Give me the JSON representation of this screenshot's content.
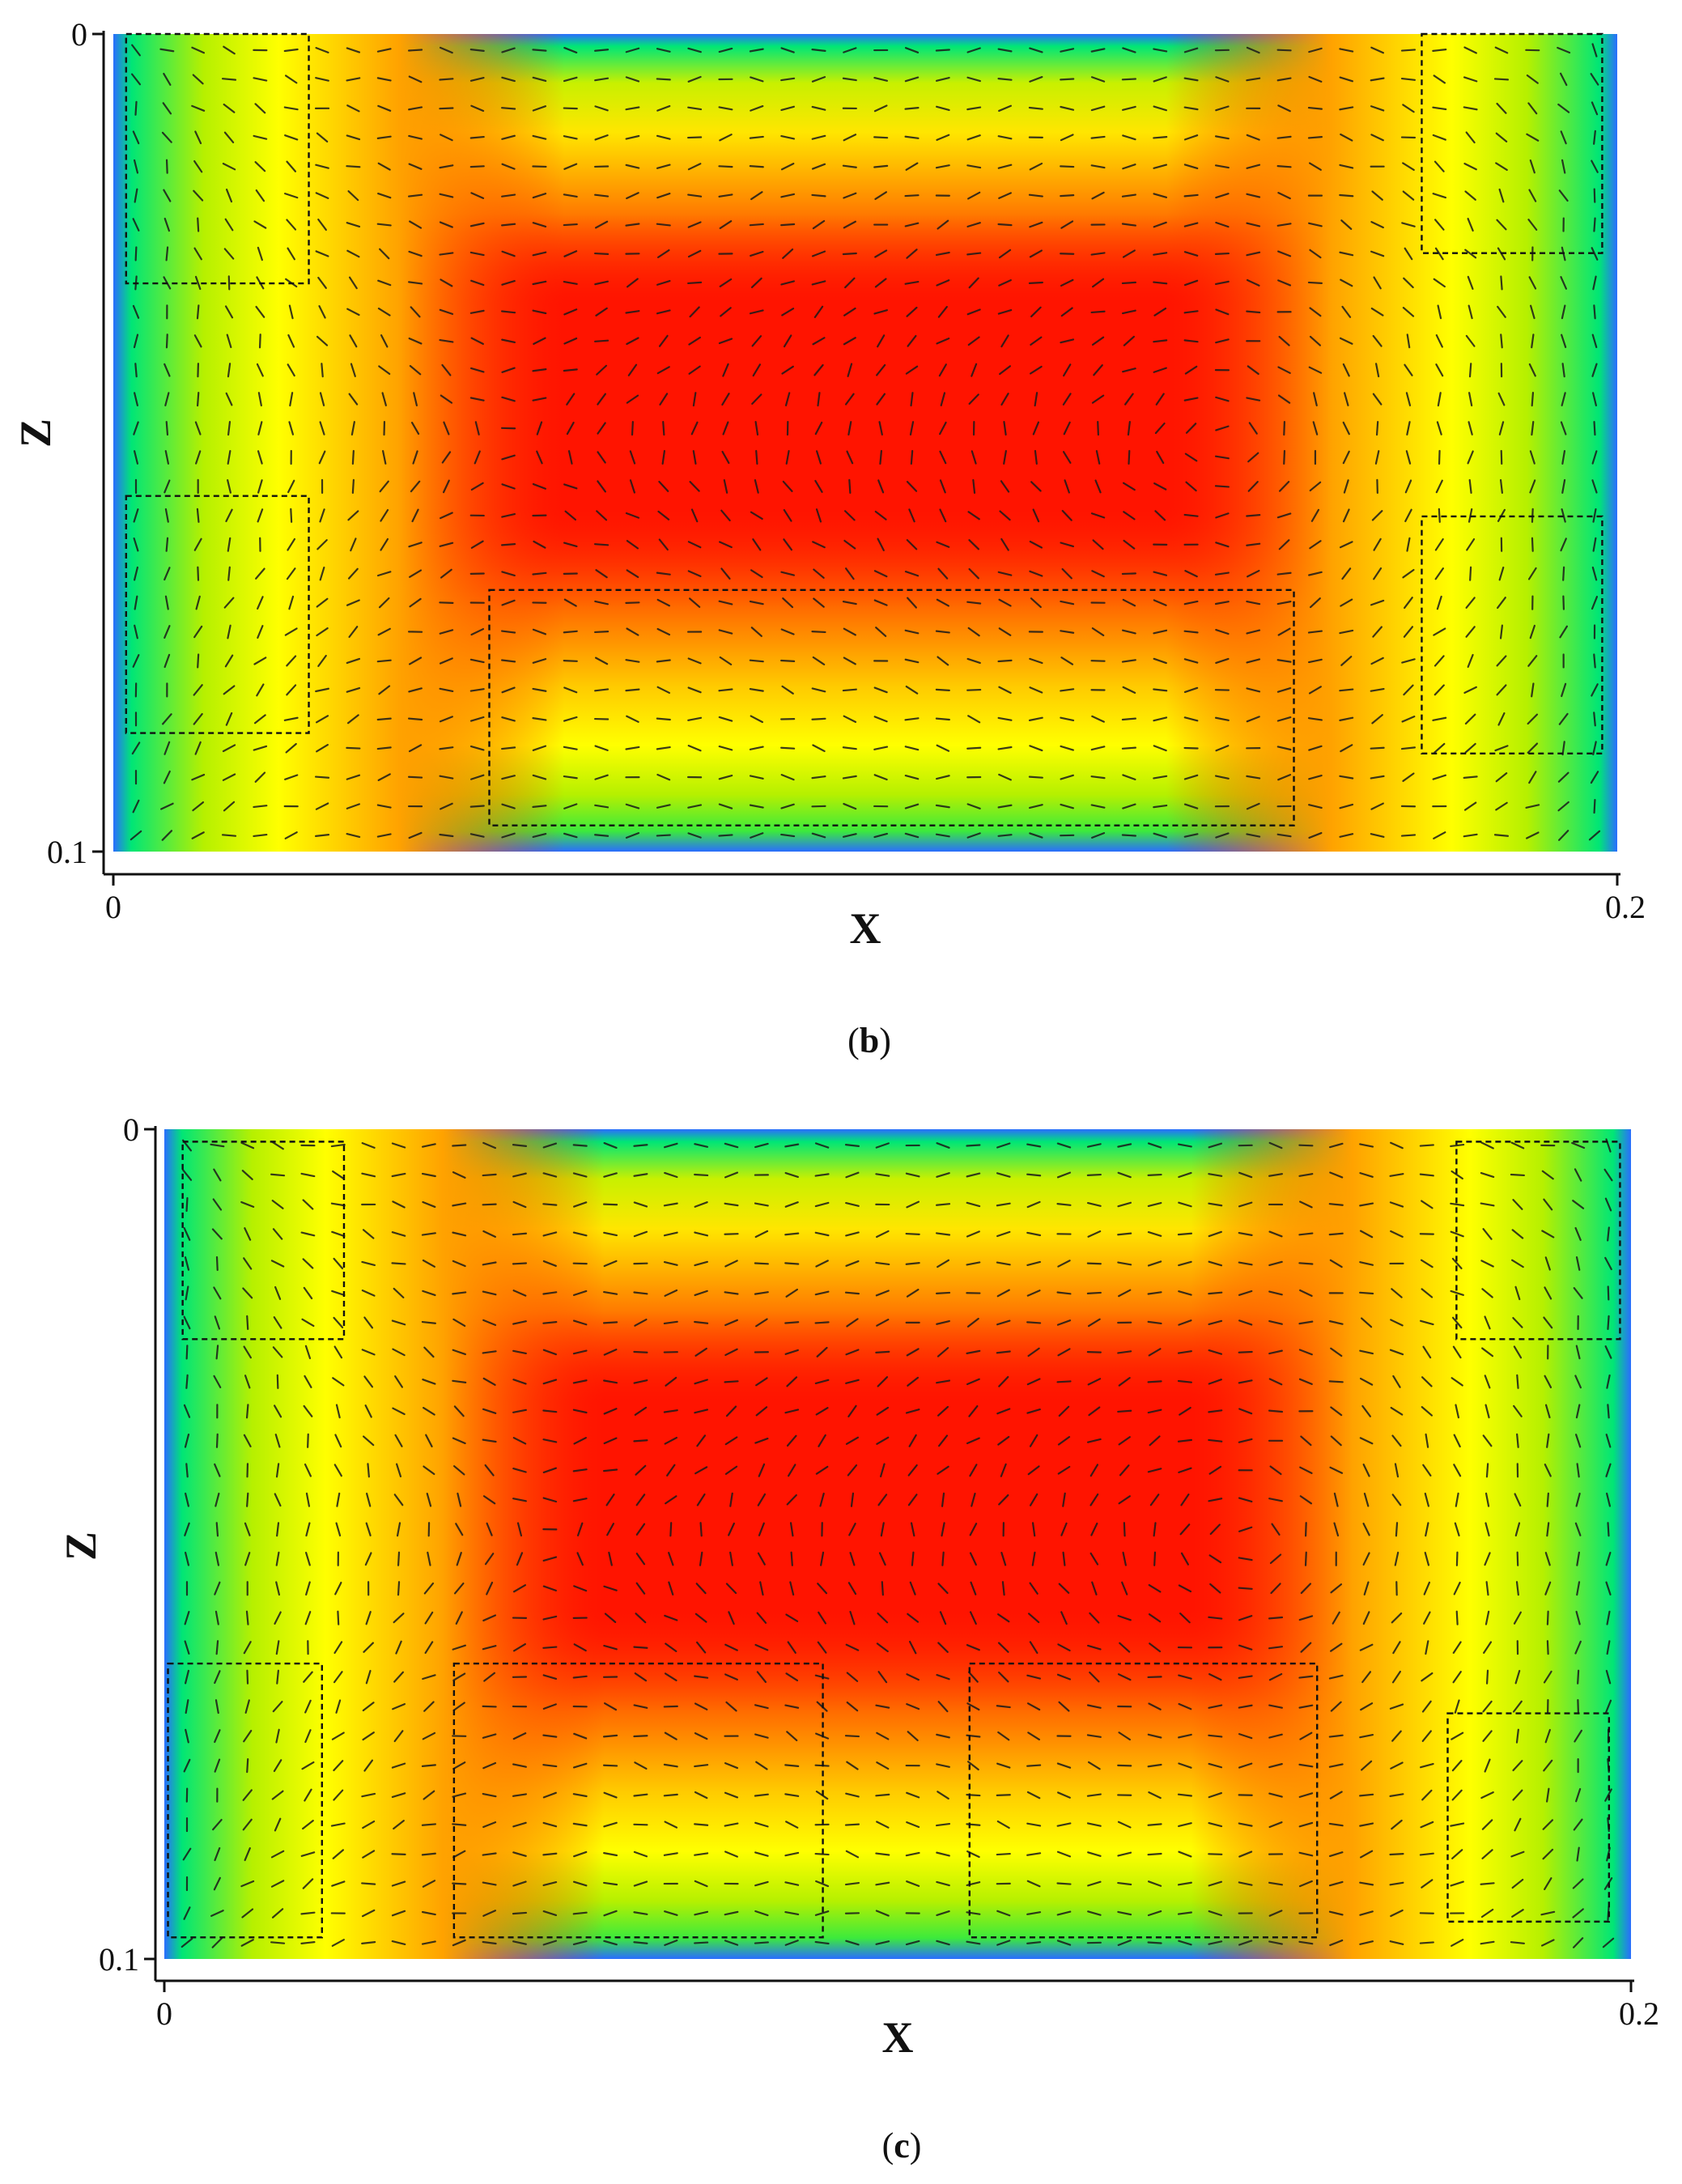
{
  "chart_data": [
    {
      "type": "heatmap",
      "panel": "b",
      "caption": {
        "open": "(",
        "letter": "b",
        "close": ")"
      },
      "xlabel": "X",
      "ylabel": "Z",
      "x_ticks": [
        "0",
        "0.2"
      ],
      "y_ticks": [
        "0",
        "0.1"
      ],
      "xlim": [
        0,
        0.2
      ],
      "ylim": [
        0,
        0.1
      ],
      "y_inverted": true,
      "field": "contour with velocity vector glyphs; peak (red) in interior, low (blue/green) at walls",
      "colormap": [
        "#1f5cff",
        "#00e676",
        "#b6f000",
        "#ffff00",
        "#ffaa00",
        "#ff3a00",
        "#ff0000"
      ],
      "highlight_regions": [
        {
          "x": [
            0.0017,
            0.026
          ],
          "z": [
            0.0,
            0.0305
          ]
        },
        {
          "x": [
            0.174,
            0.198
          ],
          "z": [
            0.0,
            0.0268
          ]
        },
        {
          "x": [
            0.0017,
            0.026
          ],
          "z": [
            0.0565,
            0.0855
          ]
        },
        {
          "x": [
            0.05,
            0.157
          ],
          "z": [
            0.068,
            0.0968
          ]
        },
        {
          "x": [
            0.174,
            0.198
          ],
          "z": [
            0.059,
            0.088
          ]
        }
      ]
    },
    {
      "type": "heatmap",
      "panel": "c",
      "caption": {
        "open": "(",
        "letter": "c",
        "close": ")"
      },
      "xlabel": "X",
      "ylabel": "Z",
      "x_ticks": [
        "0",
        "0.2"
      ],
      "y_ticks": [
        "0",
        "0.1"
      ],
      "xlim": [
        0,
        0.2
      ],
      "ylim": [
        0,
        0.1
      ],
      "y_inverted": true,
      "field": "contour with velocity vector glyphs; peak (red) in interior, low (blue/green) at walls",
      "colormap": [
        "#1f5cff",
        "#00e676",
        "#b6f000",
        "#ffff00",
        "#ffaa00",
        "#ff3a00",
        "#ff0000"
      ],
      "highlight_regions": [
        {
          "x": [
            0.0025,
            0.0245
          ],
          "z": [
            0.0015,
            0.0253
          ]
        },
        {
          "x": [
            0.1762,
            0.1985
          ],
          "z": [
            0.0015,
            0.0253
          ]
        },
        {
          "x": [
            0.0005,
            0.0215
          ],
          "z": [
            0.0644,
            0.0974
          ]
        },
        {
          "x": [
            0.0395,
            0.0898
          ],
          "z": [
            0.0644,
            0.0974
          ]
        },
        {
          "x": [
            0.1098,
            0.1572
          ],
          "z": [
            0.0644,
            0.0974
          ]
        },
        {
          "x": [
            0.175,
            0.197
          ],
          "z": [
            0.0704,
            0.0955
          ]
        }
      ]
    }
  ]
}
